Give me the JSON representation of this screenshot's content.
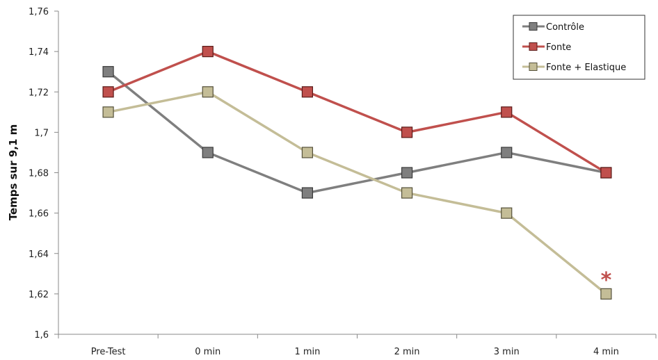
{
  "chart_data": {
    "type": "line",
    "title": "",
    "xlabel": "",
    "ylabel": "Temps sur 9,1 m",
    "categories": [
      "Pre-Test",
      "0 min",
      "1 min",
      "2 min",
      "3 min",
      "4 min"
    ],
    "ylim": [
      1.6,
      1.76
    ],
    "yticks": [
      "1,6",
      "1,62",
      "1,64",
      "1,66",
      "1,68",
      "1,7",
      "1,72",
      "1,74",
      "1,76"
    ],
    "grid": false,
    "legend_position": "top-right",
    "series": [
      {
        "name": "Contrôle",
        "color": "#7f7f7f",
        "values": [
          1.73,
          1.69,
          1.67,
          1.68,
          1.69,
          1.68
        ]
      },
      {
        "name": "Fonte",
        "color": "#c0504d",
        "values": [
          1.72,
          1.74,
          1.72,
          1.7,
          1.71,
          1.68
        ]
      },
      {
        "name": "Fonte + Elastique",
        "color": "#c4bd97",
        "values": [
          1.71,
          1.72,
          1.69,
          1.67,
          1.66,
          1.62
        ]
      }
    ],
    "annotations": [
      {
        "text": "*",
        "category": "4 min",
        "series": "Fonte + Elastique",
        "color": "#c0504d"
      }
    ]
  }
}
